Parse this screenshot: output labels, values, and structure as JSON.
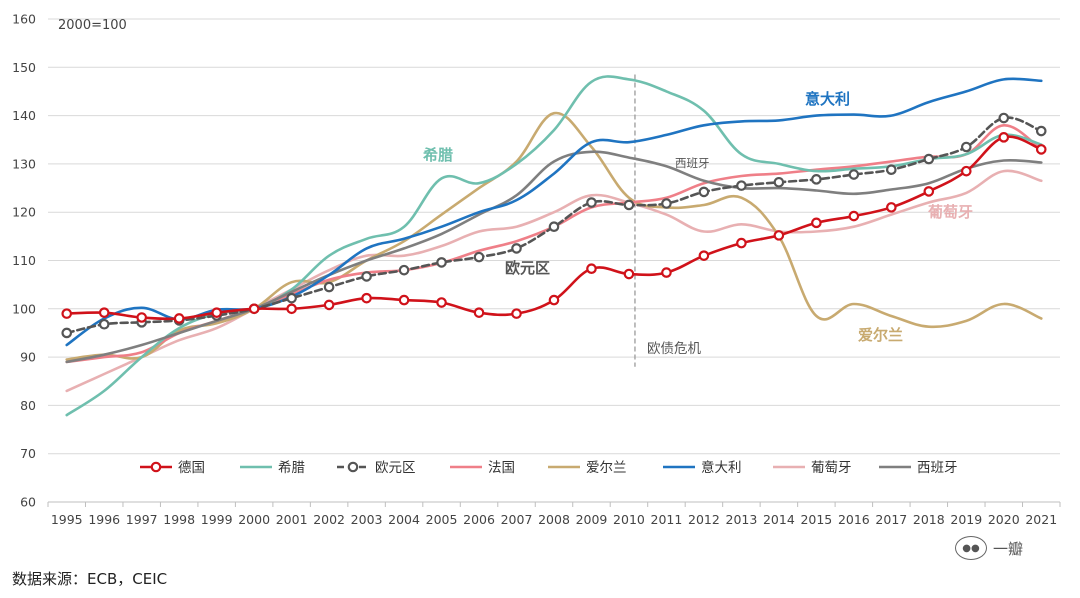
{
  "chart_data": {
    "type": "line",
    "note": "2000=100",
    "x": [
      "1995",
      "1996",
      "1997",
      "1998",
      "1999",
      "2000",
      "2001",
      "2002",
      "2003",
      "2004",
      "2005",
      "2006",
      "2007",
      "2008",
      "2009",
      "2010",
      "2011",
      "2012",
      "2013",
      "2014",
      "2015",
      "2016",
      "2017",
      "2018",
      "2019",
      "2020",
      "2021"
    ],
    "ylim": [
      60,
      160
    ],
    "yticks": [
      60,
      70,
      80,
      90,
      100,
      110,
      120,
      130,
      140,
      150,
      160
    ],
    "grid": "horizontal",
    "legend_position": "bottom",
    "series": [
      {
        "key": "germany",
        "name": "德国",
        "color": "#d0121a",
        "style": "solid-marker",
        "values": [
          99,
          99.2,
          98.2,
          98,
          99.2,
          100,
          100,
          100.8,
          102.2,
          101.8,
          101.3,
          99.2,
          99,
          101.8,
          108.3,
          107.2,
          107.5,
          111,
          113.6,
          115.2,
          117.8,
          119.2,
          121,
          124.3,
          128.5,
          135.5,
          133
        ]
      },
      {
        "key": "greece",
        "name": "希腊",
        "color": "#6fbfae",
        "style": "solid",
        "values": [
          78,
          83,
          90,
          96,
          99,
          100,
          104,
          111,
          114.5,
          117,
          127,
          126,
          130,
          137,
          147,
          147.5,
          145,
          141,
          132,
          130,
          128.5,
          129,
          129.5,
          131,
          132,
          136,
          134
        ]
      },
      {
        "key": "eurozone",
        "name": "欧元区",
        "color": "#555555",
        "style": "dashed-marker",
        "values": [
          95,
          96.8,
          97.2,
          97.6,
          98.6,
          100,
          102.2,
          104.5,
          106.7,
          108,
          109.6,
          110.7,
          112.5,
          117,
          122,
          121.5,
          121.8,
          124.2,
          125.5,
          126.2,
          126.8,
          127.8,
          128.8,
          131,
          133.5,
          139.5,
          136.8
        ]
      },
      {
        "key": "france",
        "name": "法国",
        "color": "#ef7f88",
        "style": "solid",
        "values": [
          89,
          90,
          91,
          95,
          97.5,
          100,
          103,
          106,
          107.5,
          108,
          109.5,
          112,
          114,
          117,
          121,
          122,
          123,
          126,
          127.5,
          128,
          128.8,
          129.5,
          130.5,
          131.5,
          132,
          138,
          133
        ]
      },
      {
        "key": "ireland",
        "name": "爱尔兰",
        "color": "#c8aa70",
        "style": "solid",
        "values": [
          89.5,
          90.5,
          90,
          95.5,
          97,
          100,
          105.5,
          105.5,
          110,
          114,
          119.5,
          125,
          130.5,
          140.5,
          133.5,
          123,
          121,
          121.5,
          123,
          115,
          98.5,
          101,
          98.5,
          96.3,
          97.5,
          101,
          98
        ]
      },
      {
        "key": "italy",
        "name": "意大利",
        "color": "#1f74c1",
        "style": "solid",
        "values": [
          92.5,
          98,
          100.2,
          97.8,
          99.8,
          100,
          102.5,
          107,
          112.5,
          114.5,
          117,
          120,
          122.5,
          128,
          134.5,
          134.5,
          136,
          138,
          138.8,
          139,
          140,
          140.2,
          140,
          142.8,
          145,
          147.5,
          147.2
        ]
      },
      {
        "key": "portugal",
        "name": "葡萄牙",
        "color": "#e8b0b2",
        "style": "solid",
        "values": [
          83,
          86.5,
          90,
          93.5,
          96,
          100,
          104,
          108,
          111,
          111,
          113,
          116,
          117,
          120,
          123.5,
          122,
          119.5,
          116,
          117.5,
          116,
          116,
          117,
          119.5,
          122,
          124,
          128.5,
          126.5
        ]
      },
      {
        "key": "spain",
        "name": "西班牙",
        "color": "#7f7f7f",
        "style": "solid",
        "values": [
          89,
          90.5,
          92.5,
          95,
          97.5,
          100,
          103.5,
          107,
          110,
          112.5,
          115.5,
          119.5,
          123.5,
          130.5,
          132.5,
          131.3,
          129.5,
          126.5,
          125,
          125,
          124.5,
          123.8,
          124.7,
          126,
          129,
          130.7,
          130.3
        ]
      }
    ],
    "annotations": {
      "italy": "意大利",
      "greece": "希腊",
      "spain": "西班牙",
      "portugal": "葡萄牙",
      "eurozone": "欧元区",
      "ireland": "爱尔兰",
      "crisis": "欧债危机"
    },
    "crisis_year": "2010",
    "source": "数据来源：ECB，CEIC"
  },
  "watermark": "一瓣"
}
